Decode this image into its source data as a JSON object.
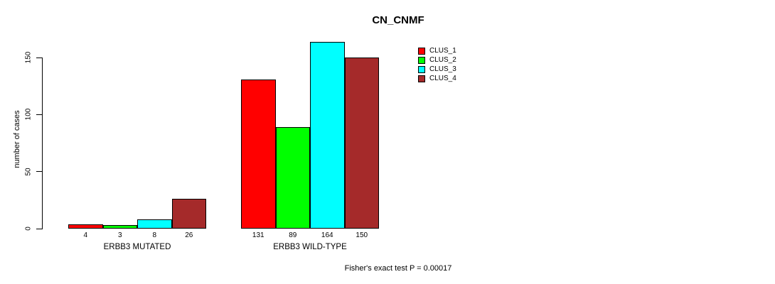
{
  "title": "CN_CNMF",
  "footnote": "Fisher's exact test P = 0.00017",
  "legend": {
    "items": [
      {
        "label": "CLUS_1",
        "color": "#FF0000"
      },
      {
        "label": "CLUS_2",
        "color": "#00FF00"
      },
      {
        "label": "CLUS_3",
        "color": "#00FFFF"
      },
      {
        "label": "CLUS_4",
        "color": "#A52A2A"
      }
    ]
  },
  "chart_data": {
    "type": "bar",
    "title": "CN_CNMF",
    "xlabel": "",
    "ylabel": "number of cases",
    "categories": [
      "ERBB3 MUTATED",
      "ERBB3 WILD-TYPE"
    ],
    "series": [
      {
        "name": "CLUS_1",
        "color": "#FF0000",
        "values": [
          4,
          131
        ]
      },
      {
        "name": "CLUS_2",
        "color": "#00FF00",
        "values": [
          3,
          89
        ]
      },
      {
        "name": "CLUS_3",
        "color": "#00FFFF",
        "values": [
          8,
          164
        ]
      },
      {
        "name": "CLUS_4",
        "color": "#A52A2A",
        "values": [
          26,
          150
        ]
      }
    ],
    "bar_value_labels": [
      [
        4,
        3,
        8,
        26
      ],
      [
        131,
        89,
        164,
        150
      ]
    ],
    "yticks": [
      0,
      50,
      100,
      150
    ],
    "ylim": [
      0,
      164
    ],
    "grid": false,
    "legend_position": "inside-top-right",
    "legend_entries": [
      "CLUS_1",
      "CLUS_2",
      "CLUS_3",
      "CLUS_4"
    ],
    "annotation": "Fisher's exact test P = 0.00017"
  }
}
